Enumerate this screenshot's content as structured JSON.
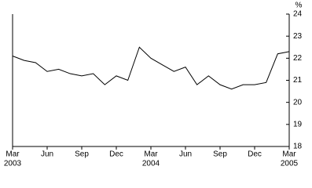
{
  "chart_data": {
    "type": "line",
    "y_unit_label": "%",
    "categories": [
      "Mar",
      null,
      null,
      "Jun",
      null,
      null,
      "Sep",
      null,
      null,
      "Dec",
      null,
      null,
      "Mar",
      null,
      null,
      "Jun",
      null,
      null,
      "Sep",
      null,
      null,
      "Dec",
      null,
      null,
      "Mar"
    ],
    "category_years": [
      "2003",
      null,
      null,
      null,
      null,
      null,
      null,
      null,
      null,
      null,
      null,
      null,
      "2004",
      null,
      null,
      null,
      null,
      null,
      null,
      null,
      null,
      null,
      null,
      null,
      "2005"
    ],
    "values": [
      22.1,
      21.9,
      21.8,
      21.4,
      21.5,
      21.3,
      21.2,
      21.3,
      20.8,
      21.2,
      21.0,
      22.5,
      22.0,
      21.7,
      21.4,
      21.6,
      20.8,
      21.2,
      20.8,
      20.6,
      20.8,
      20.8,
      20.9,
      22.2,
      22.3
    ],
    "color": "#000000",
    "ylim": [
      18,
      24
    ],
    "yticks": [
      18,
      19,
      20,
      21,
      22,
      23,
      24
    ],
    "y_axis_side": "right",
    "grid": false
  }
}
